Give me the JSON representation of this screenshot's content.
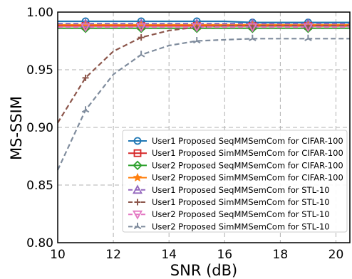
{
  "chart_data": {
    "type": "line",
    "title": "",
    "xlabel": "SNR (dB)",
    "ylabel": "MS-SSIM",
    "xlim": [
      10,
      20.5
    ],
    "ylim": [
      0.8,
      1.0
    ],
    "xticks": [
      10,
      12,
      14,
      16,
      18,
      20
    ],
    "yticks": [
      0.8,
      0.85,
      0.9,
      0.95,
      1.0
    ],
    "xtick_labels": [
      "10",
      "12",
      "14",
      "16",
      "18",
      "20"
    ],
    "ytick_labels": [
      "0.80",
      "0.85",
      "0.90",
      "0.95",
      "1.00"
    ],
    "grid": true,
    "legend_position": "lower-right",
    "x": [
      10,
      11,
      12,
      13,
      14,
      15,
      16,
      17,
      18,
      19,
      20,
      20.5
    ],
    "series": [
      {
        "name": "User1 Proposed SeqMMSemCom for CIFAR-100",
        "color": "#1f77b4",
        "marker": "circle",
        "dash": "solid",
        "values": [
          0.992,
          0.992,
          0.992,
          0.992,
          0.992,
          0.992,
          0.992,
          0.991,
          0.991,
          0.991,
          0.991,
          0.991
        ]
      },
      {
        "name": "User1 Proposed SimMMSemCom for CIFAR-100",
        "color": "#d62728",
        "marker": "square",
        "dash": "solid",
        "values": [
          0.988,
          0.988,
          0.988,
          0.988,
          0.988,
          0.988,
          0.988,
          0.988,
          0.988,
          0.988,
          0.988,
          0.988
        ]
      },
      {
        "name": "User2 Proposed SeqMMSemCom for CIFAR-100",
        "color": "#2ca02c",
        "marker": "diamond",
        "dash": "solid",
        "values": [
          0.986,
          0.986,
          0.986,
          0.986,
          0.986,
          0.986,
          0.986,
          0.986,
          0.986,
          0.986,
          0.986,
          0.986
        ]
      },
      {
        "name": "User2 Proposed SimMMSemCom for CIFAR-100",
        "color": "#ff7f0e",
        "marker": "star",
        "dash": "solid",
        "values": [
          0.989,
          0.989,
          0.989,
          0.989,
          0.989,
          0.989,
          0.989,
          0.989,
          0.989,
          0.989,
          0.989,
          0.989
        ]
      },
      {
        "name": "User1 Proposed SeqMMSemCom for STL-10",
        "color": "#9467bd",
        "marker": "triangle-up",
        "dash": "dashed",
        "values": [
          0.99,
          0.99,
          0.99,
          0.99,
          0.99,
          0.99,
          0.99,
          0.99,
          0.99,
          0.99,
          0.99,
          0.99
        ]
      },
      {
        "name": "User1 Proposed SimMMSemCom for STL-10",
        "color": "#8c564b",
        "marker": "plus",
        "dash": "dashed",
        "values": [
          0.904,
          0.943,
          0.966,
          0.978,
          0.984,
          0.987,
          0.988,
          0.988,
          0.988,
          0.988,
          0.988,
          0.988
        ]
      },
      {
        "name": "User2 Proposed SeqMMSemCom for STL-10",
        "color": "#e377c2",
        "marker": "triangle-down",
        "dash": "dashed",
        "values": [
          0.987,
          0.987,
          0.987,
          0.987,
          0.987,
          0.987,
          0.987,
          0.987,
          0.987,
          0.987,
          0.987,
          0.987
        ]
      },
      {
        "name": "User2 Proposed SimMMSemCom for STL-10",
        "color": "#7f8c9d",
        "marker": "tri",
        "dash": "dashed",
        "values": [
          0.863,
          0.915,
          0.946,
          0.963,
          0.971,
          0.975,
          0.976,
          0.977,
          0.977,
          0.977,
          0.977,
          0.977
        ]
      }
    ]
  }
}
